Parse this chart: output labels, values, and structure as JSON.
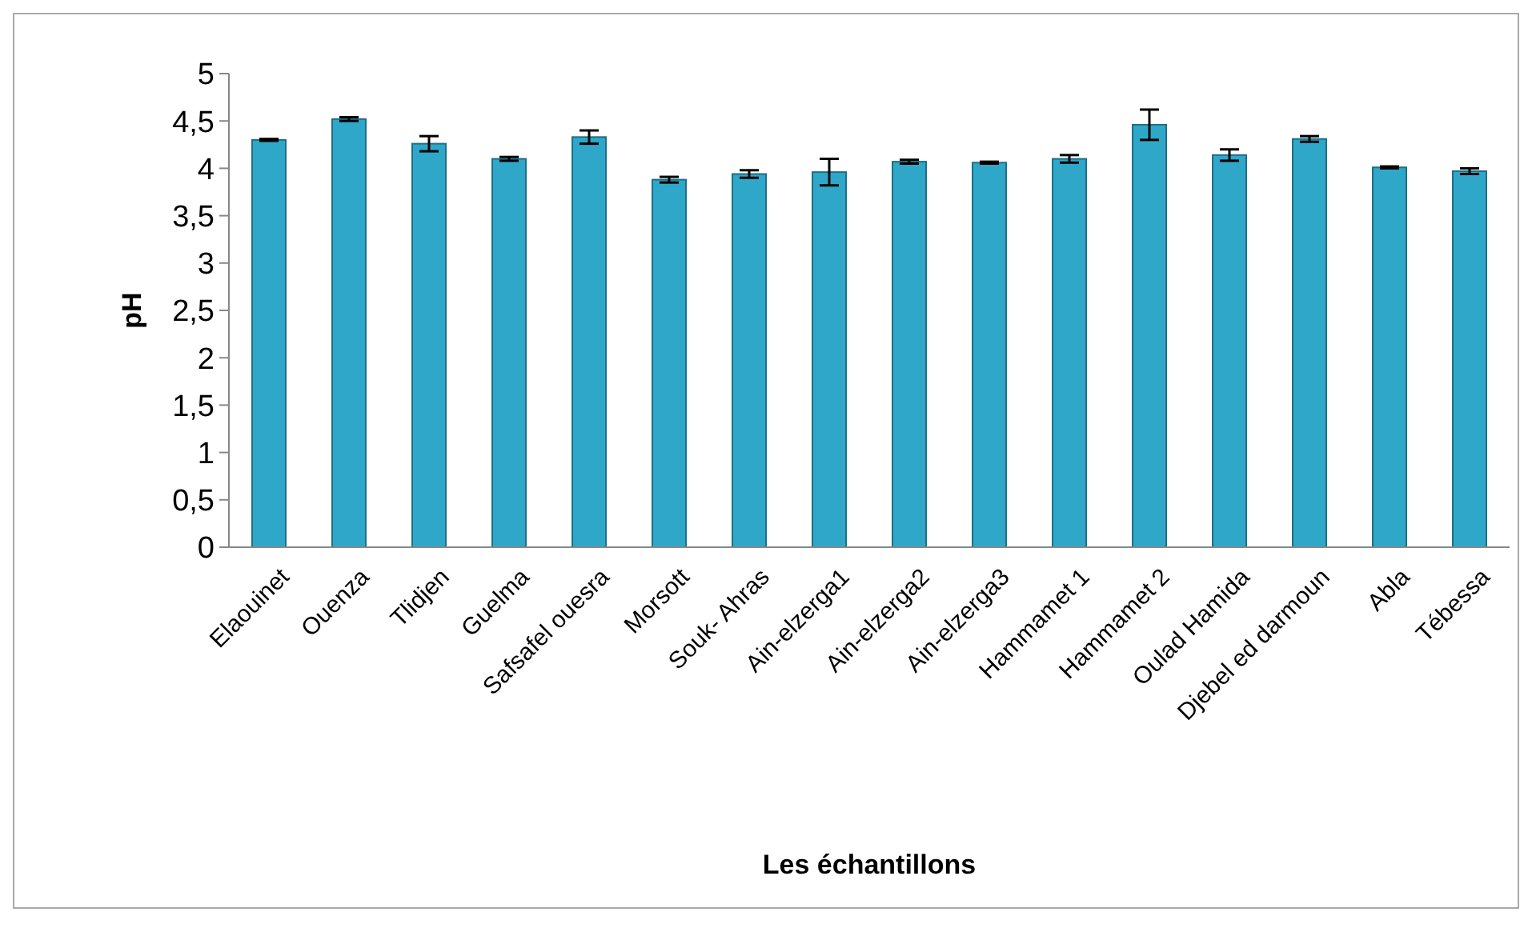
{
  "chart_data": {
    "type": "bar",
    "xlabel": "Les échantillons",
    "ylabel": "pH",
    "categories": [
      "Elaouinet",
      "Ouenza",
      "Tlidjen",
      "Guelma",
      "Safsafel ouesra",
      "Morsott",
      "Souk- Ahras",
      "Ain-elzerga1",
      "Ain-elzerga2",
      "Ain-elzerga3",
      "Hammamet 1",
      "Hammamet 2",
      "Oulad Hamida",
      "Djebel ed darmoun",
      "Abla",
      "Tébessa"
    ],
    "values": [
      4.3,
      4.52,
      4.26,
      4.1,
      4.33,
      3.88,
      3.94,
      3.96,
      4.07,
      4.06,
      4.1,
      4.46,
      4.14,
      4.31,
      4.01,
      3.97
    ],
    "errors": [
      0.01,
      0.02,
      0.08,
      0.02,
      0.07,
      0.03,
      0.04,
      0.14,
      0.02,
      0.01,
      0.04,
      0.16,
      0.06,
      0.03,
      0.01,
      0.03
    ],
    "color": "#2fa7c9",
    "ylim": [
      0,
      5
    ],
    "yticks": [
      0,
      {
        "value": 0.5,
        "label": "0,5"
      },
      1,
      {
        "value": 1.5,
        "label": "1,5"
      },
      2,
      {
        "value": 2.5,
        "label": "2,5"
      },
      3,
      {
        "value": 3.5,
        "label": "3,5"
      },
      4,
      {
        "value": 4.5,
        "label": "4,5"
      },
      5
    ],
    "grid": false
  }
}
